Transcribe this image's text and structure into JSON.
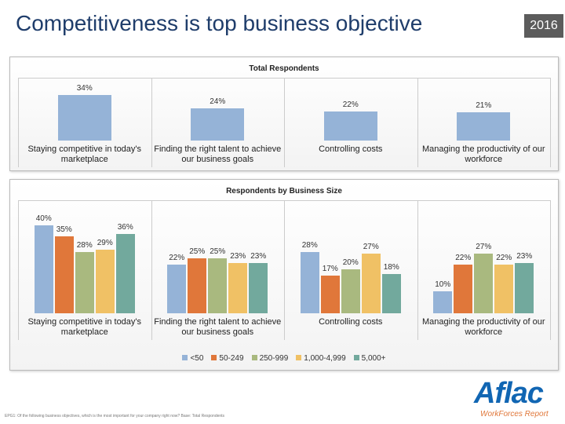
{
  "header": {
    "title": "Competitiveness is top business objective",
    "badge": "2016"
  },
  "chart_data": [
    {
      "type": "bar",
      "title": "Total Respondents",
      "categories": [
        "Staying competitive in today's marketplace",
        "Finding the right talent to achieve our business goals",
        "Controlling costs",
        "Managing the productivity of our workforce"
      ],
      "values": [
        34,
        24,
        22,
        21
      ],
      "value_labels": [
        "34%",
        "24%",
        "22%",
        "21%"
      ],
      "color": "#95b3d7"
    },
    {
      "type": "grouped_bar",
      "title": "Respondents by Business Size",
      "categories": [
        "Staying competitive in today's marketplace",
        "Finding the right talent to achieve our business goals",
        "Controlling costs",
        "Managing the productivity of our workforce"
      ],
      "series": [
        {
          "name": "<50",
          "color": "#95b3d7",
          "values": [
            40,
            22,
            28,
            10
          ],
          "value_labels": [
            "40%",
            "22%",
            "28%",
            "10%"
          ]
        },
        {
          "name": "50-249",
          "color": "#e0773a",
          "values": [
            35,
            25,
            17,
            22
          ],
          "value_labels": [
            "35%",
            "25%",
            "17%",
            "22%"
          ]
        },
        {
          "name": "250-999",
          "color": "#a9b97f",
          "values": [
            28,
            25,
            20,
            27
          ],
          "value_labels": [
            "28%",
            "25%",
            "20%",
            "27%"
          ]
        },
        {
          "name": "1,000-4,999",
          "color": "#f0c165",
          "values": [
            29,
            23,
            27,
            22
          ],
          "value_labels": [
            "29%",
            "23%",
            "27%",
            "22%"
          ]
        },
        {
          "name": "5,000+",
          "color": "#72a99d",
          "values": [
            36,
            23,
            18,
            23
          ],
          "value_labels": [
            "36%",
            "23%",
            "18%",
            "23%"
          ]
        }
      ],
      "legend": "bottom"
    }
  ],
  "footnote": "EPG1: Of the following business objectives, which is the most important for your company right now? Base: Total Respondents",
  "logo": {
    "name": "Aflac",
    "tagline": "WorkForces Report"
  }
}
